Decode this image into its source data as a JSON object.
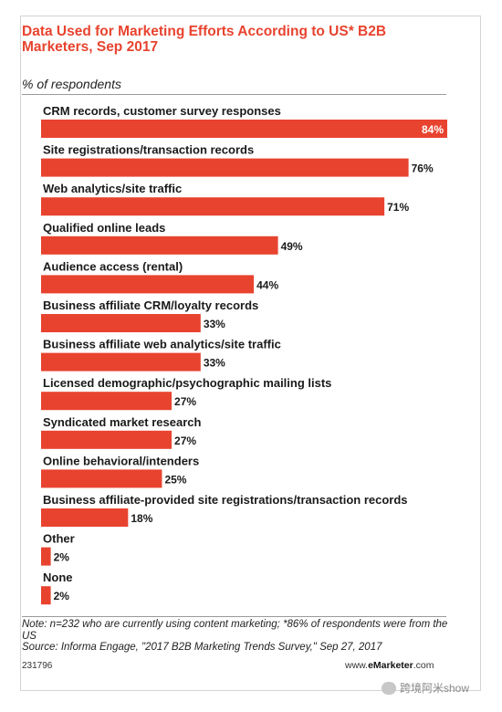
{
  "header": {
    "title": "Data Used for Marketing Efforts According to US* B2B Marketers, Sep 2017",
    "subtitle": "% of respondents"
  },
  "chart_data": {
    "type": "bar",
    "orientation": "horizontal",
    "title": "Data Used for Marketing Efforts According to US* B2B Marketers, Sep 2017",
    "subtitle": "% of respondents",
    "xlim": [
      0,
      84
    ],
    "grid": false,
    "bar_color": "#e8432f",
    "categories": [
      "CRM records, customer survey responses",
      "Site registrations/transaction records",
      "Web analytics/site traffic",
      "Qualified online leads",
      "Audience access (rental)",
      "Business affiliate CRM/loyalty records",
      "Business affiliate web analytics/site traffic",
      "Licensed demographic/psychographic mailing lists",
      "Syndicated market research",
      "Online behavioral/intenders",
      "Business affiliate-provided site registrations/transaction records",
      "Other",
      "None"
    ],
    "values": [
      84,
      76,
      71,
      49,
      44,
      33,
      33,
      27,
      27,
      25,
      18,
      2,
      2
    ],
    "value_labels": [
      "84%",
      "76%",
      "71%",
      "49%",
      "44%",
      "33%",
      "33%",
      "27%",
      "27%",
      "25%",
      "18%",
      "2%",
      "2%"
    ]
  },
  "footer": {
    "note": "Note: n=232 who are currently using content marketing; *86% of respondents were from the US",
    "source": "Source: Informa Engage, \"2017 B2B Marketing Trends Survey,\" Sep 27, 2017",
    "code": "231796",
    "brand_prefix": "www.",
    "brand_name": "eMarketer",
    "brand_suffix": ".com",
    "watermark": "跨境阿米show"
  }
}
